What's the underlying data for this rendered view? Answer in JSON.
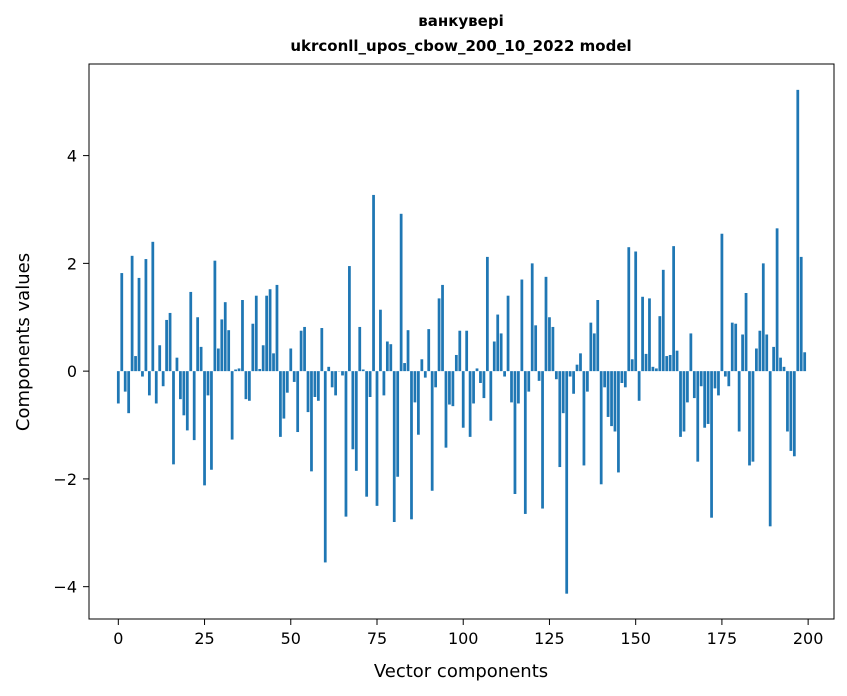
{
  "chart_data": {
    "type": "bar",
    "title_line1": "ванкувері",
    "title_line2": "ukrconll_upos_cbow_200_10_2022 model",
    "xlabel": "Vector components",
    "ylabel": "Components values",
    "xlim": [
      -8.5,
      207.5
    ],
    "ylim": [
      -4.6,
      5.7
    ],
    "x_ticks": [
      0,
      25,
      50,
      75,
      100,
      125,
      150,
      175,
      200
    ],
    "x_tick_labels": [
      "0",
      "25",
      "50",
      "75",
      "100",
      "125",
      "150",
      "175",
      "200"
    ],
    "y_ticks": [
      -4,
      -2,
      0,
      2,
      4
    ],
    "y_tick_labels": [
      "−4",
      "−2",
      "0",
      "2",
      "4"
    ],
    "grid": false,
    "color": "#1f77b4",
    "values": [
      -0.6,
      1.82,
      -0.38,
      -0.78,
      2.14,
      0.28,
      1.73,
      -0.1,
      2.08,
      -0.45,
      2.4,
      -0.6,
      0.48,
      -0.28,
      0.95,
      1.08,
      -1.73,
      0.25,
      -0.52,
      -0.82,
      -1.1,
      1.47,
      -1.28,
      1.0,
      0.45,
      -2.12,
      -0.45,
      -1.83,
      2.05,
      0.42,
      0.96,
      1.28,
      0.76,
      -1.27,
      0.03,
      0.05,
      1.32,
      -0.52,
      -0.55,
      0.88,
      1.4,
      0.04,
      0.48,
      1.4,
      1.52,
      0.33,
      1.6,
      -1.22,
      -0.88,
      -0.4,
      0.42,
      -0.2,
      -1.13,
      0.75,
      0.82,
      -0.76,
      -1.86,
      -0.48,
      -0.55,
      0.8,
      -3.55,
      0.08,
      -0.3,
      -0.45,
      0.0,
      -0.08,
      -2.7,
      1.95,
      -1.45,
      -1.85,
      0.82,
      0.03,
      -2.33,
      -0.48,
      3.27,
      -2.5,
      1.14,
      -0.45,
      0.55,
      0.5,
      -2.8,
      -1.96,
      2.92,
      0.15,
      0.76,
      -2.75,
      -0.58,
      -1.18,
      0.22,
      -0.12,
      0.78,
      -2.22,
      -0.3,
      1.35,
      1.6,
      -1.42,
      -0.62,
      -0.65,
      0.3,
      0.75,
      -1.05,
      0.75,
      -1.22,
      -0.6,
      0.05,
      -0.22,
      -0.5,
      2.12,
      -0.92,
      0.55,
      1.05,
      0.7,
      -0.1,
      1.4,
      -0.58,
      -2.28,
      -0.6,
      1.7,
      -2.65,
      -0.38,
      2.0,
      0.85,
      -0.18,
      -2.55,
      1.75,
      1.0,
      0.82,
      -0.15,
      -1.78,
      -0.78,
      -4.13,
      -0.1,
      -0.42,
      0.12,
      0.33,
      -1.75,
      -0.38,
      0.9,
      0.7,
      1.32,
      -2.1,
      -0.3,
      -0.85,
      -1.02,
      -1.12,
      -1.88,
      -0.22,
      -0.3,
      2.3,
      0.22,
      2.22,
      -0.55,
      1.38,
      0.32,
      1.35,
      0.08,
      0.05,
      1.02,
      1.88,
      0.28,
      0.3,
      2.32,
      0.38,
      -1.22,
      -1.12,
      -0.58,
      0.7,
      -0.5,
      -1.68,
      -0.28,
      -1.05,
      -0.98,
      -2.72,
      -0.32,
      -0.45,
      2.55,
      -0.1,
      -0.28,
      0.9,
      0.88,
      -1.12,
      0.68,
      1.45,
      -1.75,
      -1.68,
      0.42,
      0.75,
      2.0,
      0.68,
      -2.88,
      0.45,
      2.65,
      0.25,
      0.08,
      -1.12,
      -1.48,
      -1.58,
      5.22,
      2.12,
      0.35
    ]
  }
}
